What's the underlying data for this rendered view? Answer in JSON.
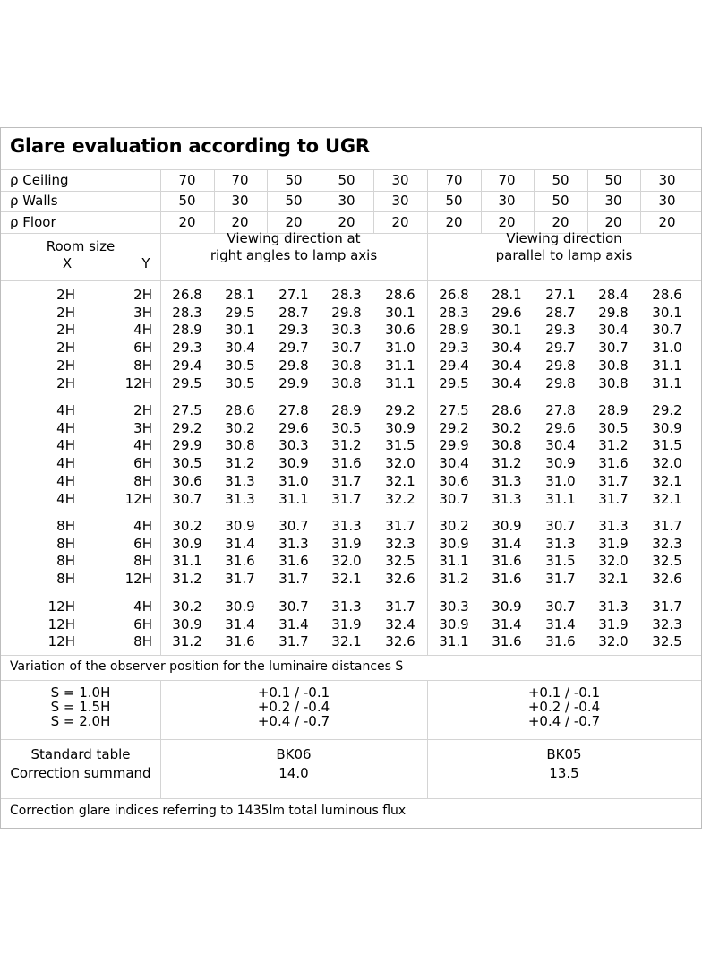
{
  "title": "Glare evaluation according to UGR",
  "reflectance_rows": [
    {
      "label": "ρ Ceiling",
      "values": [
        "70",
        "70",
        "50",
        "50",
        "30",
        "70",
        "70",
        "50",
        "50",
        "30"
      ]
    },
    {
      "label": "ρ Walls",
      "values": [
        "50",
        "30",
        "50",
        "30",
        "30",
        "50",
        "30",
        "50",
        "30",
        "30"
      ]
    },
    {
      "label": "ρ Floor",
      "values": [
        "20",
        "20",
        "20",
        "20",
        "20",
        "20",
        "20",
        "20",
        "20",
        "20"
      ]
    }
  ],
  "room_size": {
    "label": "Room size",
    "x": "X",
    "y": "Y"
  },
  "viewing": {
    "right_angles": [
      "Viewing direction at",
      "right angles to lamp axis"
    ],
    "parallel": [
      "Viewing direction",
      "parallel to lamp axis"
    ]
  },
  "groups": [
    [
      {
        "x": "2H",
        "y": "2H",
        "v": [
          "26.8",
          "28.1",
          "27.1",
          "28.3",
          "28.6",
          "26.8",
          "28.1",
          "27.1",
          "28.4",
          "28.6"
        ]
      },
      {
        "x": "2H",
        "y": "3H",
        "v": [
          "28.3",
          "29.5",
          "28.7",
          "29.8",
          "30.1",
          "28.3",
          "29.6",
          "28.7",
          "29.8",
          "30.1"
        ]
      },
      {
        "x": "2H",
        "y": "4H",
        "v": [
          "28.9",
          "30.1",
          "29.3",
          "30.3",
          "30.6",
          "28.9",
          "30.1",
          "29.3",
          "30.4",
          "30.7"
        ]
      },
      {
        "x": "2H",
        "y": "6H",
        "v": [
          "29.3",
          "30.4",
          "29.7",
          "30.7",
          "31.0",
          "29.3",
          "30.4",
          "29.7",
          "30.7",
          "31.0"
        ]
      },
      {
        "x": "2H",
        "y": "8H",
        "v": [
          "29.4",
          "30.5",
          "29.8",
          "30.8",
          "31.1",
          "29.4",
          "30.4",
          "29.8",
          "30.8",
          "31.1"
        ]
      },
      {
        "x": "2H",
        "y": "12H",
        "v": [
          "29.5",
          "30.5",
          "29.9",
          "30.8",
          "31.1",
          "29.5",
          "30.4",
          "29.8",
          "30.8",
          "31.1"
        ]
      }
    ],
    [
      {
        "x": "4H",
        "y": "2H",
        "v": [
          "27.5",
          "28.6",
          "27.8",
          "28.9",
          "29.2",
          "27.5",
          "28.6",
          "27.8",
          "28.9",
          "29.2"
        ]
      },
      {
        "x": "4H",
        "y": "3H",
        "v": [
          "29.2",
          "30.2",
          "29.6",
          "30.5",
          "30.9",
          "29.2",
          "30.2",
          "29.6",
          "30.5",
          "30.9"
        ]
      },
      {
        "x": "4H",
        "y": "4H",
        "v": [
          "29.9",
          "30.8",
          "30.3",
          "31.2",
          "31.5",
          "29.9",
          "30.8",
          "30.4",
          "31.2",
          "31.5"
        ]
      },
      {
        "x": "4H",
        "y": "6H",
        "v": [
          "30.5",
          "31.2",
          "30.9",
          "31.6",
          "32.0",
          "30.4",
          "31.2",
          "30.9",
          "31.6",
          "32.0"
        ]
      },
      {
        "x": "4H",
        "y": "8H",
        "v": [
          "30.6",
          "31.3",
          "31.0",
          "31.7",
          "32.1",
          "30.6",
          "31.3",
          "31.0",
          "31.7",
          "32.1"
        ]
      },
      {
        "x": "4H",
        "y": "12H",
        "v": [
          "30.7",
          "31.3",
          "31.1",
          "31.7",
          "32.2",
          "30.7",
          "31.3",
          "31.1",
          "31.7",
          "32.1"
        ]
      }
    ],
    [
      {
        "x": "8H",
        "y": "4H",
        "v": [
          "30.2",
          "30.9",
          "30.7",
          "31.3",
          "31.7",
          "30.2",
          "30.9",
          "30.7",
          "31.3",
          "31.7"
        ]
      },
      {
        "x": "8H",
        "y": "6H",
        "v": [
          "30.9",
          "31.4",
          "31.3",
          "31.9",
          "32.3",
          "30.9",
          "31.4",
          "31.3",
          "31.9",
          "32.3"
        ]
      },
      {
        "x": "8H",
        "y": "8H",
        "v": [
          "31.1",
          "31.6",
          "31.6",
          "32.0",
          "32.5",
          "31.1",
          "31.6",
          "31.5",
          "32.0",
          "32.5"
        ]
      },
      {
        "x": "8H",
        "y": "12H",
        "v": [
          "31.2",
          "31.7",
          "31.7",
          "32.1",
          "32.6",
          "31.2",
          "31.6",
          "31.7",
          "32.1",
          "32.6"
        ]
      }
    ],
    [
      {
        "x": "12H",
        "y": "4H",
        "v": [
          "30.2",
          "30.9",
          "30.7",
          "31.3",
          "31.7",
          "30.3",
          "30.9",
          "30.7",
          "31.3",
          "31.7"
        ]
      },
      {
        "x": "12H",
        "y": "6H",
        "v": [
          "30.9",
          "31.4",
          "31.4",
          "31.9",
          "32.4",
          "30.9",
          "31.4",
          "31.4",
          "31.9",
          "32.3"
        ]
      },
      {
        "x": "12H",
        "y": "8H",
        "v": [
          "31.2",
          "31.6",
          "31.7",
          "32.1",
          "32.6",
          "31.1",
          "31.6",
          "31.6",
          "32.0",
          "32.5"
        ]
      }
    ]
  ],
  "variation": {
    "label": "Variation of the observer position for the luminaire distances S",
    "s_labels": [
      "S = 1.0H",
      "S = 1.5H",
      "S = 2.0H"
    ],
    "right_angles": [
      "+0.1 / -0.1",
      "+0.2 / -0.4",
      "+0.4 / -0.7"
    ],
    "parallel": [
      "+0.1 / -0.1",
      "+0.2 / -0.4",
      "+0.4 / -0.7"
    ]
  },
  "standard": {
    "labels": [
      "Standard table",
      "Correction summand"
    ],
    "right_angles": [
      "BK06",
      "14.0"
    ],
    "parallel": [
      "BK05",
      "13.5"
    ]
  },
  "footer": "Correction glare indices referring to 1435lm total luminous flux"
}
